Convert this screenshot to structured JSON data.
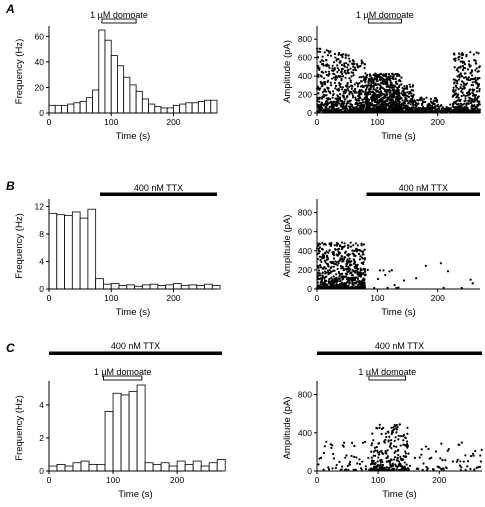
{
  "chart_data": [
    {
      "panel": "A",
      "type": "bar",
      "xlabel": "Time (s)",
      "ylabel": "Frequency (Hz)",
      "xlim": [
        0,
        270
      ],
      "ylim": [
        0,
        65
      ],
      "xticks": [
        0,
        100,
        200
      ],
      "yticks": [
        0,
        20,
        40,
        60
      ],
      "bin_width": 10,
      "bin_starts": [
        0,
        10,
        20,
        30,
        40,
        50,
        60,
        70,
        80,
        90,
        100,
        110,
        120,
        130,
        140,
        150,
        160,
        170,
        180,
        190,
        200,
        210,
        220,
        230,
        240,
        250,
        260
      ],
      "values": [
        6,
        6,
        6,
        7,
        8,
        9,
        12,
        18,
        65,
        57,
        45,
        37,
        28,
        22,
        17,
        11,
        7,
        5,
        4,
        4,
        6,
        7,
        8,
        8,
        9,
        10,
        10
      ],
      "annotation": {
        "text": "1 µM domoate",
        "x_start": 85,
        "x_end": 140,
        "style": "open"
      }
    },
    {
      "panel": "A",
      "type": "scatter",
      "xlabel": "Time (s)",
      "ylabel": "Amplitude (pA)",
      "xlim": [
        0,
        270
      ],
      "ylim": [
        0,
        900
      ],
      "xticks": [
        0,
        100,
        200
      ],
      "yticks": [
        0,
        200,
        400,
        600,
        800
      ],
      "annotation": {
        "text": "1 µM domoate",
        "x_start": 85,
        "x_end": 140,
        "style": "open"
      }
    },
    {
      "panel": "B",
      "type": "bar",
      "xlabel": "Time (s)",
      "ylabel": "Frequency (Hz)",
      "xlim": [
        0,
        270
      ],
      "ylim": [
        0,
        12.5
      ],
      "xticks": [
        0,
        100,
        200
      ],
      "yticks": [
        0,
        4,
        8,
        12
      ],
      "bin_width": 12.5,
      "bin_starts": [
        0,
        12.5,
        25,
        37.5,
        50,
        62.5,
        75,
        87.5,
        100,
        112.5,
        125,
        137.5,
        150,
        162.5,
        175,
        187.5,
        200,
        212.5,
        225,
        237.5,
        250,
        262.5
      ],
      "values": [
        11,
        10.8,
        10.7,
        11.2,
        10.3,
        11.6,
        1.5,
        0.7,
        0.8,
        0.5,
        0.6,
        0.4,
        0.6,
        0.7,
        0.5,
        0.6,
        0.8,
        0.5,
        0.6,
        0.5,
        0.7,
        0.5
      ],
      "annotation": {
        "text": "400 nM TTX",
        "x_start": 82,
        "x_end": 270,
        "style": "filled"
      }
    },
    {
      "panel": "B",
      "type": "scatter",
      "xlabel": "Time (s)",
      "ylabel": "Amplitude (pA)",
      "xlim": [
        0,
        270
      ],
      "ylim": [
        0,
        900
      ],
      "xticks": [
        0,
        100,
        200
      ],
      "yticks": [
        0,
        200,
        400,
        600,
        800
      ],
      "annotation": {
        "text": "400 nM TTX",
        "x_start": 82,
        "x_end": 270,
        "style": "filled"
      }
    },
    {
      "panel": "C",
      "type": "bar",
      "xlabel": "Time (s)",
      "ylabel": "Frequency (Hz)",
      "xlim": [
        0,
        270
      ],
      "ylim": [
        0,
        5.2
      ],
      "xticks": [
        0,
        100,
        200
      ],
      "yticks": [
        0,
        2,
        4
      ],
      "bin_width": 12.5,
      "bin_starts": [
        0,
        12.5,
        25,
        37.5,
        50,
        62.5,
        75,
        87.5,
        100,
        112.5,
        125,
        137.5,
        150,
        162.5,
        175,
        187.5,
        200,
        212.5,
        225,
        237.5,
        250,
        262.5
      ],
      "values": [
        0.3,
        0.4,
        0.3,
        0.5,
        0.6,
        0.4,
        0.4,
        3.6,
        4.7,
        4.6,
        4.8,
        5.2,
        0.5,
        0.4,
        0.5,
        0.3,
        0.6,
        0.4,
        0.6,
        0.3,
        0.5,
        0.7
      ],
      "annotations": [
        {
          "text": "400 nM TTX",
          "x_start": 0,
          "x_end": 270,
          "style": "filled"
        },
        {
          "text": "1 µM domoate",
          "x_start": 85,
          "x_end": 145,
          "style": "open"
        }
      ]
    },
    {
      "panel": "C",
      "type": "scatter",
      "xlabel": "Time (s)",
      "ylabel": "Amplitude (pA)",
      "xlim": [
        0,
        270
      ],
      "ylim": [
        0,
        900
      ],
      "xticks": [
        0,
        100,
        200
      ],
      "yticks": [
        0,
        400,
        800
      ],
      "annotations": [
        {
          "text": "400 nM TTX",
          "x_start": 0,
          "x_end": 270,
          "style": "filled"
        },
        {
          "text": "1 µM domoate",
          "x_start": 85,
          "x_end": 145,
          "style": "open"
        }
      ]
    }
  ]
}
